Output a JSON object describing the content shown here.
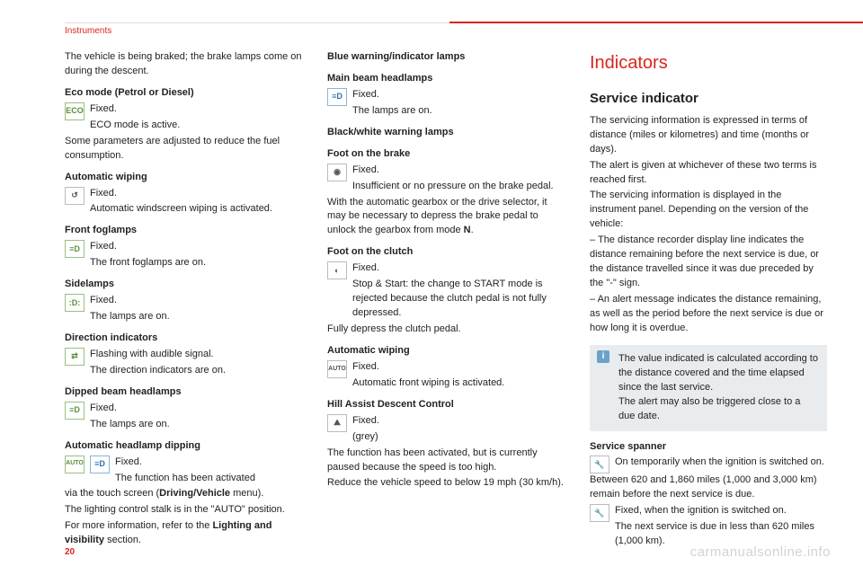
{
  "header": {
    "section": "Instruments"
  },
  "page_number": "20",
  "watermark": "carmanualsonline.info",
  "col1": {
    "intro": "The vehicle is being braked; the brake lamps come on during the descent.",
    "eco_title": "Eco mode (Petrol or Diesel)",
    "eco_fixed": "Fixed.",
    "eco_desc": "ECO mode is active.",
    "eco_note": "Some parameters are adjusted to reduce the fuel consumption.",
    "wipe_title": "Automatic wiping",
    "wipe_fixed": "Fixed.",
    "wipe_desc": "Automatic windscreen wiping is activated.",
    "fog_title": "Front foglamps",
    "fog_fixed": "Fixed.",
    "fog_desc": "The front foglamps are on.",
    "side_title": "Sidelamps",
    "side_fixed": "Fixed.",
    "side_desc": "The lamps are on.",
    "dir_title": "Direction indicators",
    "dir_fixed": "Flashing with audible signal.",
    "dir_desc": "The direction indicators are on.",
    "dip_title": "Dipped beam headlamps",
    "dip_fixed": "Fixed.",
    "dip_desc": "The lamps are on.",
    "auto_title": "Automatic headlamp dipping",
    "auto_fixed": "Fixed.",
    "auto_desc": "The function has been activated",
    "auto_l1a": "via the touch screen (",
    "auto_l1b": "Driving/Vehicle",
    "auto_l1c": " menu).",
    "auto_l2": "The lighting control stalk is in the \"AUTO\" position.",
    "auto_l3a": "For more information, refer to the ",
    "auto_l3b": "Lighting and visibility",
    "auto_l3c": " section."
  },
  "col2": {
    "blue_title": "Blue warning/indicator lamps",
    "main_title": "Main beam headlamps",
    "main_fixed": "Fixed.",
    "main_desc": "The lamps are on.",
    "bw_title": "Black/white warning lamps",
    "brake_title": "Foot on the brake",
    "brake_fixed": "Fixed.",
    "brake_desc": "Insufficient or no pressure on the brake pedal.",
    "brake_l1a": "With the automatic gearbox or the drive selector, it may be necessary to depress the brake pedal to unlock the gearbox from mode ",
    "brake_l1b": "N",
    "brake_l1c": ".",
    "clutch_title": "Foot on the clutch",
    "clutch_fixed": "Fixed.",
    "clutch_desc": "Stop & Start: the change to START mode is rejected because the clutch pedal is not fully depressed.",
    "clutch_l1": "Fully depress the clutch pedal.",
    "wipe2_title": "Automatic wiping",
    "wipe2_fixed": "Fixed.",
    "wipe2_desc": "Automatic front wiping is activated.",
    "hill_title": "Hill Assist Descent Control",
    "hill_fixed": "Fixed.",
    "hill_grey": "(grey)",
    "hill_l1": "The function has been activated, but is currently paused because the speed is too high.",
    "hill_l2": "Reduce the vehicle speed to below 19 mph (30 km/h)."
  },
  "col3": {
    "title_red": "Indicators",
    "h2": "Service indicator",
    "p1": "The servicing information is expressed in terms of distance (miles or kilometres) and time (months or days).",
    "p2": "The alert is given at whichever of these two terms is reached first.",
    "p3": "The servicing information is displayed in the instrument panel. Depending on the version of the vehicle:",
    "b1": "– The distance recorder display line indicates the distance remaining before the next service is due, or the distance travelled since it was due preceded by the \"-\" sign.",
    "b2": "– An alert message indicates the distance remaining, as well as the period before the next service is due or how long it is overdue.",
    "info": "The value indicated is calculated according to the distance covered and the time elapsed since the last service.\nThe alert may also be triggered close to a due date.",
    "spanner_title": "Service spanner",
    "spanner_desc": "On temporarily when the ignition is switched on.",
    "spanner_l1": "Between 620 and 1,860 miles (1,000 and 3,000 km) remain before the next service is due.",
    "spanner2_fixed": "Fixed, when the ignition is switched on.",
    "spanner2_desc": "The next service is due in less than 620 miles (1,000 km)."
  }
}
